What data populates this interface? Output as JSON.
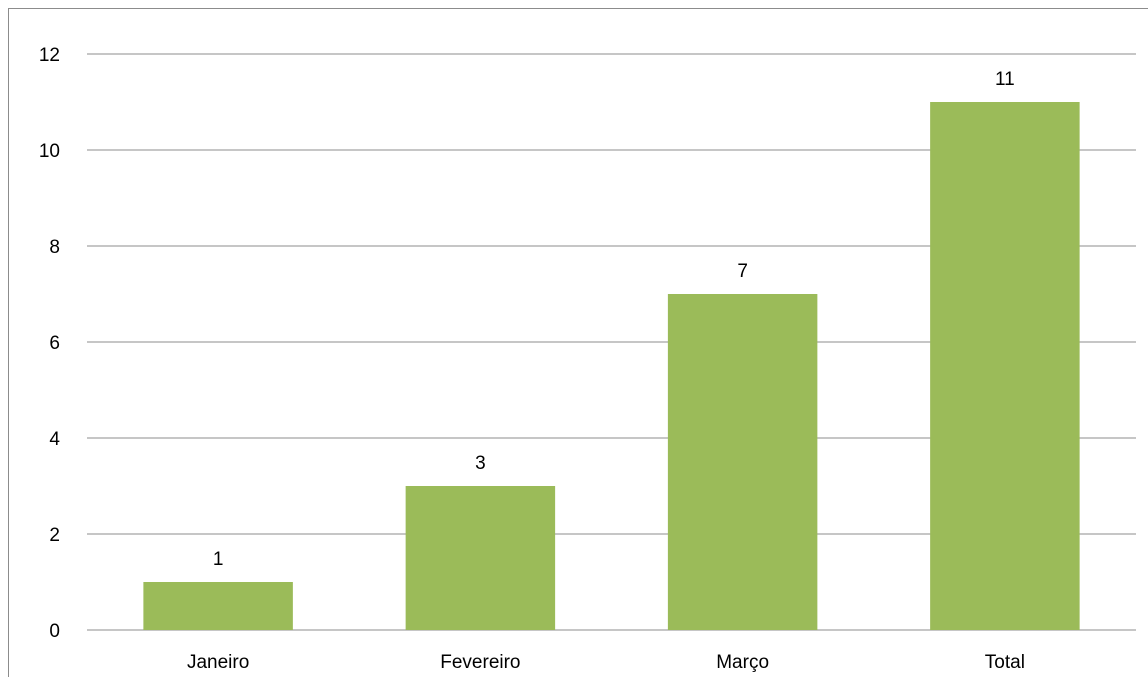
{
  "chart_data": {
    "type": "bar",
    "title": "",
    "xlabel": "",
    "ylabel": "",
    "categories": [
      "Janeiro",
      "Fevereiro",
      "Março",
      "Total"
    ],
    "values": [
      1,
      3,
      7,
      11
    ],
    "data_labels": [
      "1",
      "3",
      "7",
      "11"
    ],
    "ylim": [
      0,
      12
    ],
    "y_ticks": [
      0,
      2,
      4,
      6,
      8,
      10,
      12
    ],
    "y_tick_labels": [
      "0",
      "2",
      "4",
      "6",
      "8",
      "10",
      "12"
    ],
    "grid": true,
    "legend": "none",
    "bar_color": "#9bbb59",
    "grid_color": "#8c8c8c"
  }
}
